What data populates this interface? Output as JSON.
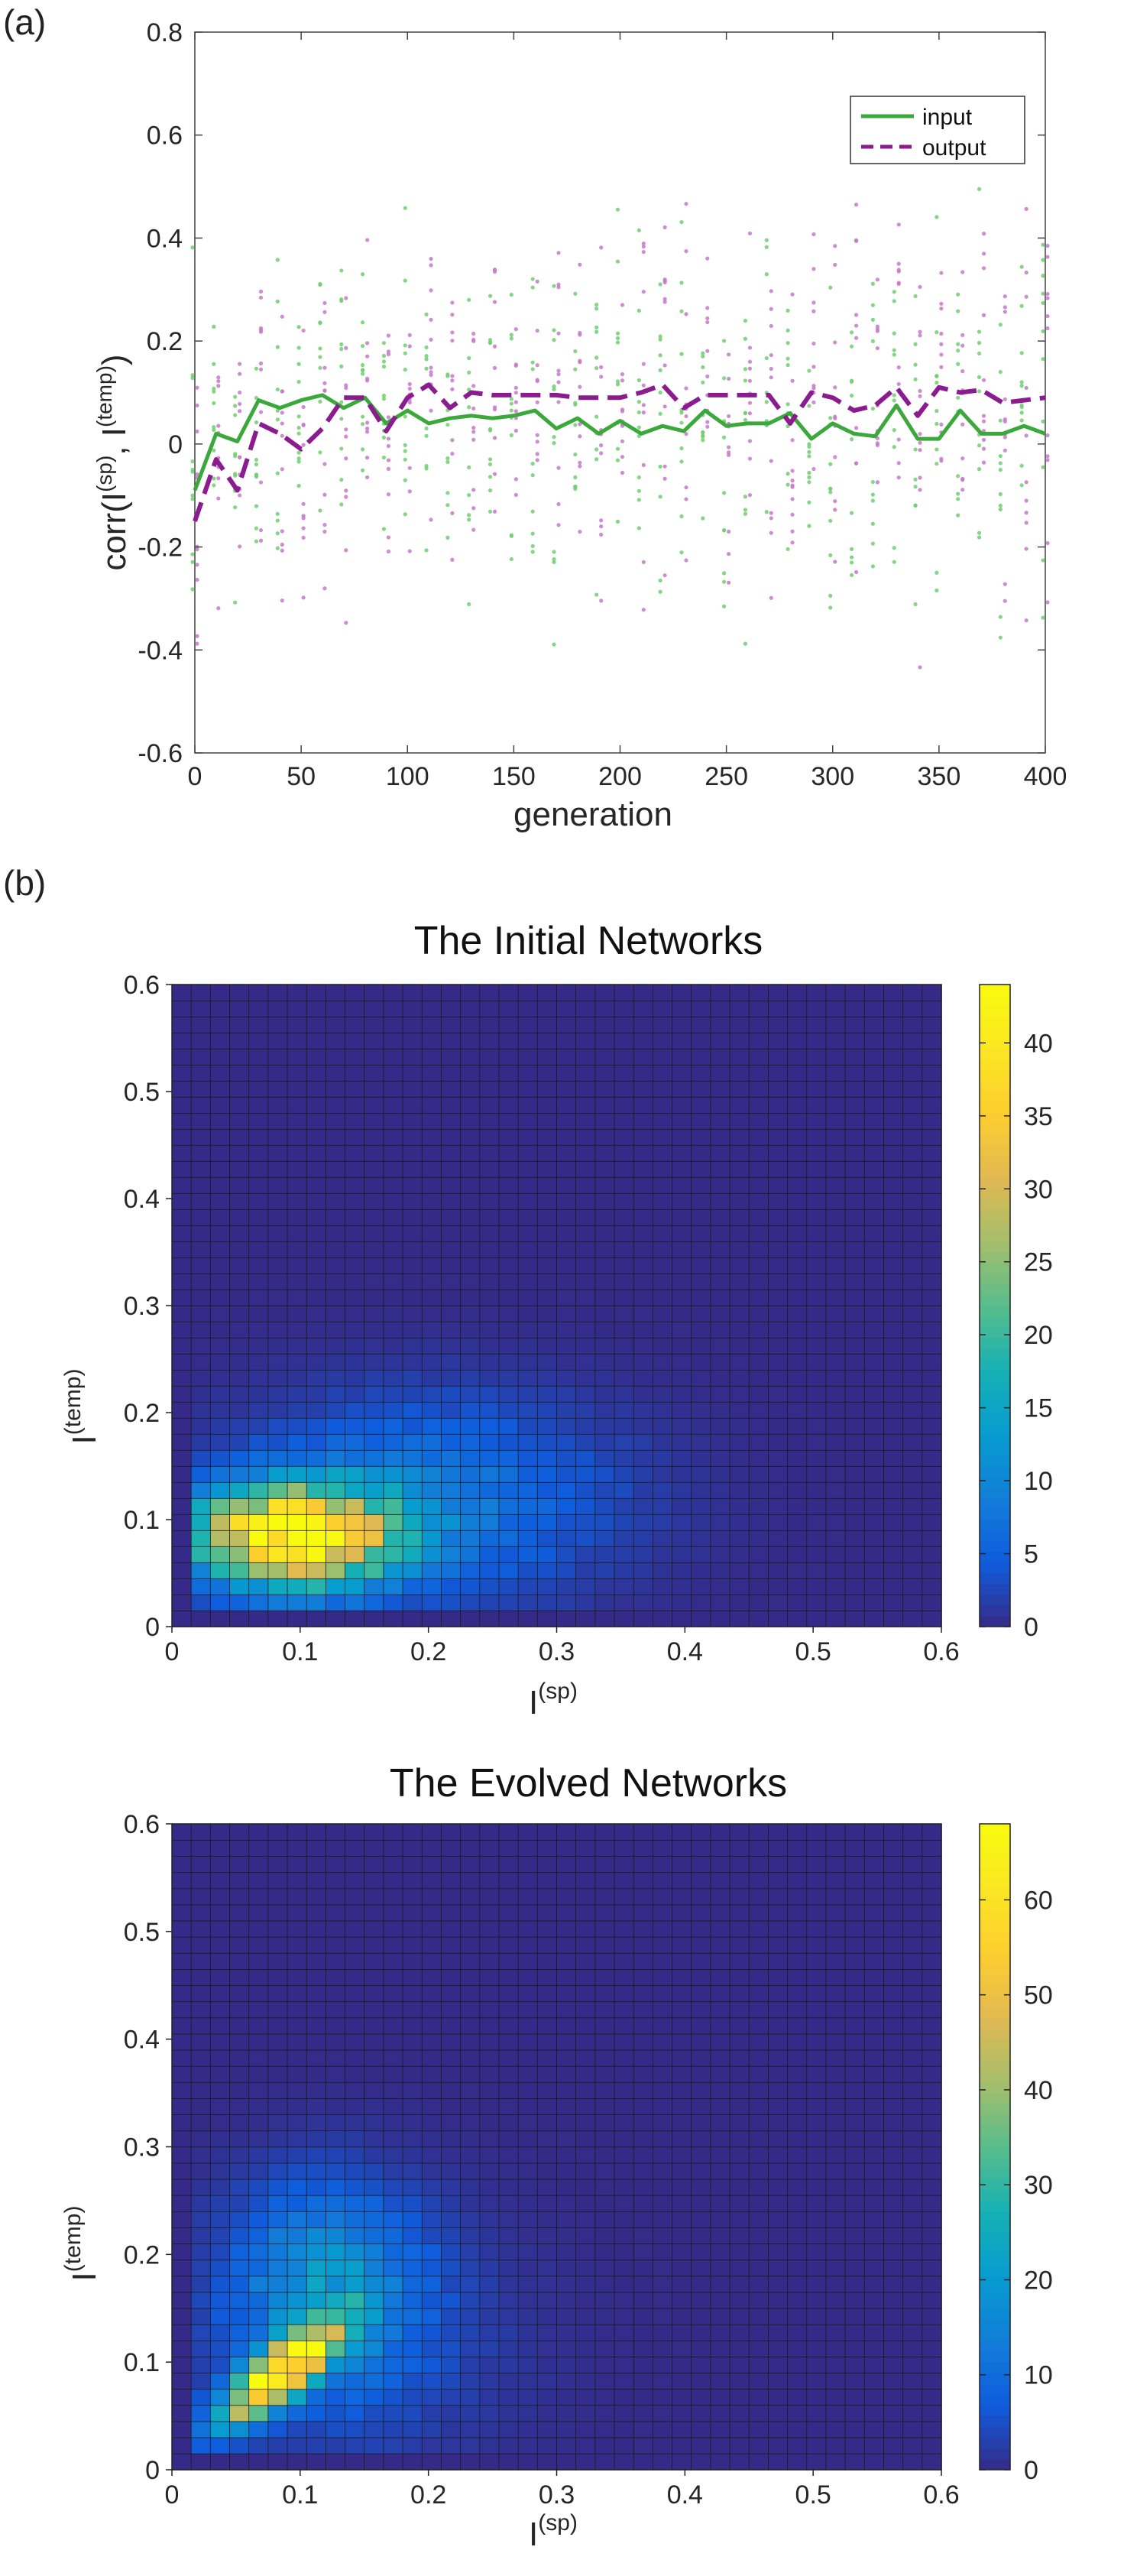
{
  "panels": {
    "a_label": "(a)",
    "b_label": "(b)"
  },
  "chart_data": [
    {
      "type": "line",
      "xlabel": "generation",
      "ylabel": "corr(I",
      "ylabel_sup1": "(sp)",
      "ylabel_mid": ", I",
      "ylabel_sup2": "(temp)",
      "ylabel_end": ")",
      "xlim": [
        0,
        400
      ],
      "ylim": [
        -0.6,
        0.8
      ],
      "xticks": [
        "0",
        "50",
        "100",
        "150",
        "200",
        "250",
        "300",
        "350",
        "400"
      ],
      "yticks": [
        "-0.6",
        "-0.4",
        "-0.2",
        "0",
        "0.2",
        "0.4",
        "0.6",
        "0.8"
      ],
      "legend_position": "top-right",
      "x": [
        0,
        10,
        20,
        30,
        40,
        50,
        60,
        70,
        80,
        90,
        100,
        110,
        120,
        130,
        140,
        150,
        160,
        170,
        180,
        190,
        200,
        210,
        220,
        230,
        240,
        250,
        260,
        270,
        280,
        290,
        300,
        310,
        320,
        330,
        340,
        350,
        360,
        370,
        380,
        390,
        400
      ],
      "series": [
        {
          "name": "input",
          "color": "#3aa83a",
          "style": "solid",
          "values": [
            -0.09,
            0.02,
            0.005,
            0.085,
            0.07,
            0.085,
            0.095,
            0.07,
            0.09,
            0.04,
            0.065,
            0.04,
            0.05,
            0.055,
            0.05,
            0.055,
            0.065,
            0.03,
            0.05,
            0.02,
            0.045,
            0.02,
            0.035,
            0.025,
            0.065,
            0.035,
            0.04,
            0.04,
            0.06,
            0.01,
            0.04,
            0.02,
            0.015,
            0.075,
            0.01,
            0.01,
            0.065,
            0.02,
            0.02,
            0.035,
            0.02
          ]
        },
        {
          "name": "output",
          "color": "#8a1c8f",
          "style": "dashed",
          "values": [
            -0.15,
            -0.03,
            -0.09,
            0.04,
            0.02,
            -0.01,
            0.03,
            0.09,
            0.09,
            0.025,
            0.09,
            0.115,
            0.07,
            0.1,
            0.095,
            0.095,
            0.095,
            0.095,
            0.09,
            0.09,
            0.09,
            0.1,
            0.115,
            0.07,
            0.095,
            0.095,
            0.095,
            0.095,
            0.04,
            0.1,
            0.09,
            0.065,
            0.075,
            0.11,
            0.055,
            0.11,
            0.1,
            0.105,
            0.08,
            0.085,
            0.09
          ]
        }
      ]
    },
    {
      "type": "heatmap",
      "title": "The Initial Networks",
      "xlabel": "I",
      "xlabel_sup": "(sp)",
      "ylabel": "I",
      "ylabel_sup": "(temp)",
      "xlim": [
        0,
        0.6
      ],
      "ylim": [
        0,
        0.6
      ],
      "bins": 40,
      "ticks": [
        "0",
        "0.1",
        "0.2",
        "0.3",
        "0.4",
        "0.5",
        "0.6"
      ],
      "colorbar_ticks": [
        "0",
        "5",
        "10",
        "15",
        "20",
        "25",
        "30",
        "35",
        "40"
      ],
      "cmax": 44,
      "peak": {
        "x": 0.1,
        "y": 0.09,
        "value": 44
      },
      "colormap": "parula"
    },
    {
      "type": "heatmap",
      "title": "The Evolved Networks",
      "xlabel": "I",
      "xlabel_sup": "(sp)",
      "ylabel": "I",
      "ylabel_sup": "(temp)",
      "xlim": [
        0,
        0.6
      ],
      "ylim": [
        0,
        0.6
      ],
      "bins": 40,
      "ticks": [
        "0",
        "0.1",
        "0.2",
        "0.3",
        "0.4",
        "0.5",
        "0.6"
      ],
      "colorbar_ticks": [
        "0",
        "10",
        "20",
        "30",
        "40",
        "50",
        "60"
      ],
      "cmax": 68,
      "peak": {
        "x": 0.09,
        "y": 0.1,
        "value": 68
      },
      "colormap": "parula"
    }
  ]
}
